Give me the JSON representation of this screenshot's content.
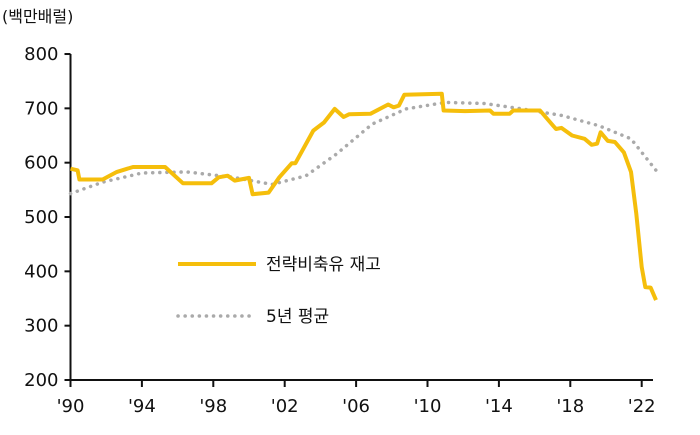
{
  "chart_data": {
    "type": "line",
    "title": "",
    "ylabel": "(백만배럴)",
    "xlabel": "",
    "ylim": [
      200,
      800
    ],
    "xlim": [
      1990,
      2023
    ],
    "yticks": [
      200,
      300,
      400,
      500,
      600,
      700,
      800
    ],
    "xticks": [
      {
        "year": 1990,
        "label": "'90"
      },
      {
        "year": 1994,
        "label": "'94"
      },
      {
        "year": 1998,
        "label": "'98"
      },
      {
        "year": 2002,
        "label": "'02"
      },
      {
        "year": 2006,
        "label": "'06"
      },
      {
        "year": 2010,
        "label": "'10"
      },
      {
        "year": 2014,
        "label": "'14"
      },
      {
        "year": 2018,
        "label": "'18"
      },
      {
        "year": 2022,
        "label": "'22"
      }
    ],
    "grid": false,
    "legend_position": "center-left",
    "series": [
      {
        "name": "전략비축유 재고",
        "style": "solid",
        "color": "#F5BE0B",
        "points": [
          [
            1990,
            589
          ],
          [
            1990.4,
            586
          ],
          [
            1990.5,
            569
          ],
          [
            1991.8,
            569
          ],
          [
            1992.6,
            583
          ],
          [
            1993.5,
            592
          ],
          [
            1995.3,
            592
          ],
          [
            1996.3,
            562
          ],
          [
            1997.9,
            562
          ],
          [
            1998.3,
            573
          ],
          [
            1998.8,
            576
          ],
          [
            1999.2,
            567
          ],
          [
            2000.0,
            572
          ],
          [
            2000.2,
            542
          ],
          [
            2001.1,
            545
          ],
          [
            2001.7,
            573
          ],
          [
            2002.4,
            599
          ],
          [
            2002.6,
            599
          ],
          [
            2003.6,
            659
          ],
          [
            2004.2,
            674
          ],
          [
            2004.8,
            699
          ],
          [
            2005.3,
            684
          ],
          [
            2005.6,
            689
          ],
          [
            2006.8,
            690
          ],
          [
            2007.8,
            707
          ],
          [
            2008.1,
            702
          ],
          [
            2008.4,
            705
          ],
          [
            2008.7,
            725
          ],
          [
            2010.8,
            727
          ],
          [
            2010.9,
            696
          ],
          [
            2012.1,
            695
          ],
          [
            2013.5,
            696
          ],
          [
            2013.7,
            690
          ],
          [
            2014.6,
            690
          ],
          [
            2014.8,
            696
          ],
          [
            2016.3,
            696
          ],
          [
            2017.2,
            662
          ],
          [
            2017.5,
            664
          ],
          [
            2018.1,
            650
          ],
          [
            2018.8,
            644
          ],
          [
            2019.2,
            633
          ],
          [
            2019.5,
            635
          ],
          [
            2019.7,
            656
          ],
          [
            2020.1,
            640
          ],
          [
            2020.5,
            638
          ],
          [
            2021.0,
            619
          ],
          [
            2021.4,
            583
          ],
          [
            2021.7,
            506
          ],
          [
            2022.0,
            408
          ],
          [
            2022.2,
            371
          ],
          [
            2022.5,
            370
          ],
          [
            2022.8,
            347
          ]
        ]
      },
      {
        "name": "5년 평균",
        "style": "dotted",
        "color": "#AAAAAA",
        "points": [
          [
            1990,
            543
          ],
          [
            1991.8,
            564
          ],
          [
            1994.0,
            581
          ],
          [
            1996.5,
            583
          ],
          [
            1999.1,
            573
          ],
          [
            2001.3,
            560
          ],
          [
            2003.2,
            576
          ],
          [
            2004.9,
            616
          ],
          [
            2006.9,
            671
          ],
          [
            2008.8,
            699
          ],
          [
            2011.0,
            711
          ],
          [
            2013.2,
            709
          ],
          [
            2015.3,
            699
          ],
          [
            2017.5,
            687
          ],
          [
            2019.6,
            668
          ],
          [
            2021.4,
            644
          ],
          [
            2022.8,
            586
          ]
        ]
      }
    ]
  }
}
